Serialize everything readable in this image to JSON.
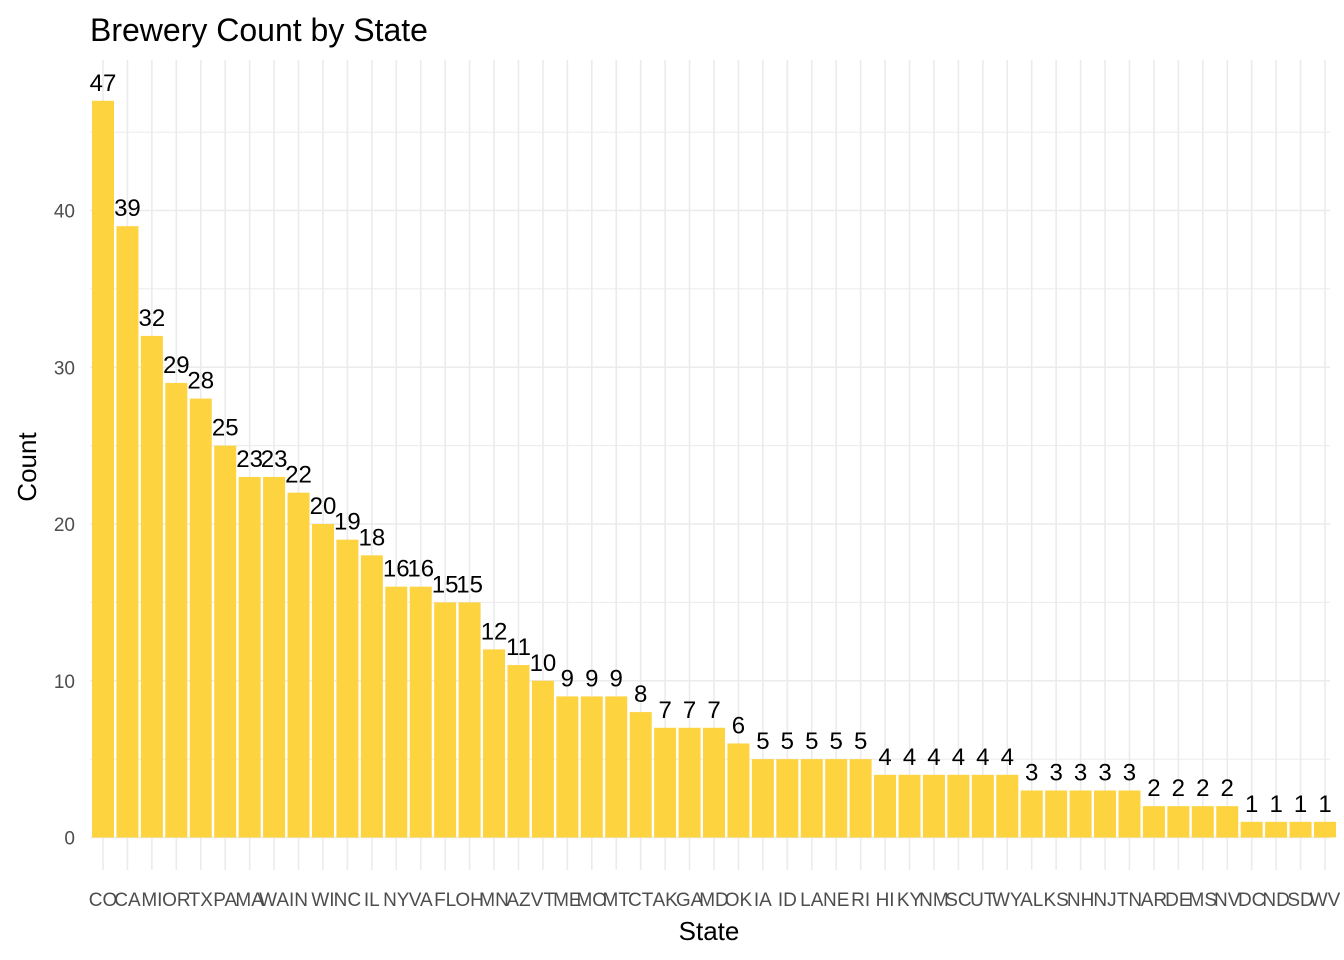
{
  "chart_data": {
    "type": "bar",
    "title": "Brewery Count by State",
    "xlabel": "State",
    "ylabel": "Count",
    "categories": [
      "CO",
      "CA",
      "MI",
      "OR",
      "TX",
      "PA",
      "MA",
      "WA",
      "IN",
      "WI",
      "NC",
      "IL",
      "NY",
      "VA",
      "FL",
      "OH",
      "MN",
      "AZ",
      "VT",
      "ME",
      "MO",
      "MT",
      "CT",
      "AK",
      "GA",
      "MD",
      "OK",
      "IA",
      "ID",
      "LA",
      "NE",
      "RI",
      "HI",
      "KY",
      "NM",
      "SC",
      "UT",
      "WY",
      "AL",
      "KS",
      "NH",
      "NJ",
      "TN",
      "AR",
      "DE",
      "MS",
      "NV",
      "DC",
      "ND",
      "SD",
      "WV"
    ],
    "values": [
      47,
      39,
      32,
      29,
      28,
      25,
      23,
      23,
      22,
      20,
      19,
      18,
      16,
      16,
      15,
      15,
      12,
      11,
      10,
      9,
      9,
      9,
      8,
      7,
      7,
      7,
      6,
      5,
      5,
      5,
      5,
      5,
      4,
      4,
      4,
      4,
      4,
      4,
      3,
      3,
      3,
      3,
      3,
      2,
      2,
      2,
      2,
      1,
      1,
      1,
      1
    ],
    "yticks": [
      0,
      10,
      20,
      30,
      40
    ],
    "ylim": [
      0,
      49.35
    ],
    "grid": true,
    "legend": "none",
    "bar_color": "#FDD33F",
    "grid_color": "#EBEBEB"
  }
}
